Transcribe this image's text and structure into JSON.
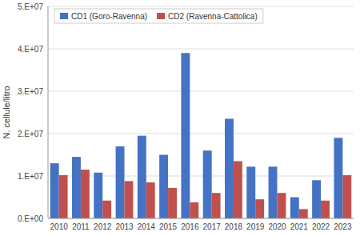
{
  "chart_data": {
    "type": "bar",
    "categories": [
      "2010",
      "2011",
      "2012",
      "2013",
      "2014",
      "2015",
      "2016",
      "2017",
      "2018",
      "2019",
      "2020",
      "2021",
      "2022",
      "2023"
    ],
    "series": [
      {
        "name": "CD1 (Goro-Ravenna)",
        "color": "#4472c4",
        "values": [
          13000000,
          14500000,
          10800000,
          17000000,
          19500000,
          15000000,
          39000000,
          16000000,
          23500000,
          12200000,
          12200000,
          5000000,
          9000000,
          19000000
        ]
      },
      {
        "name": "CD2 (Ravenna-Cattolica)",
        "color": "#c0504d",
        "values": [
          10200000,
          11500000,
          4200000,
          8800000,
          8500000,
          7200000,
          3800000,
          6000000,
          13500000,
          4500000,
          6000000,
          2200000,
          4200000,
          10200000
        ]
      }
    ],
    "y_label": "N. cellule/litro",
    "ylim": [
      0,
      50000000
    ],
    "yticks": [
      {
        "value": 0,
        "label": "0.E+00"
      },
      {
        "value": 10000000,
        "label": "1.E+07"
      },
      {
        "value": 20000000,
        "label": "2.E+07"
      },
      {
        "value": 30000000,
        "label": "3.E+07"
      },
      {
        "value": 40000000,
        "label": "4.E+07"
      },
      {
        "value": 50000000,
        "label": "5.E+07"
      }
    ],
    "grid": true,
    "legend": "upper left"
  }
}
